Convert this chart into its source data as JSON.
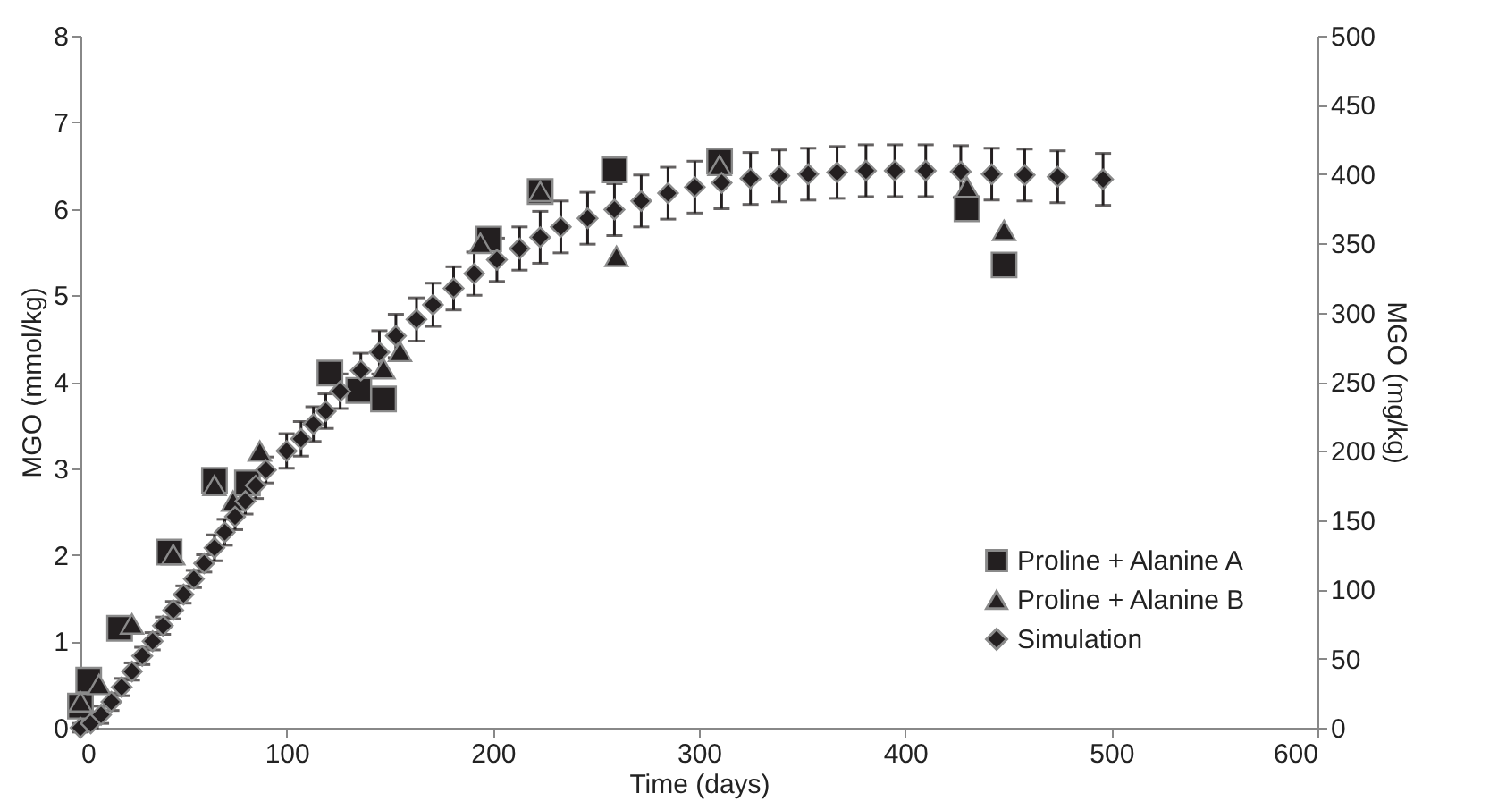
{
  "chart_data": {
    "type": "scatter",
    "xlabel": "Time (days)",
    "ylabel": "MGO (mmol/kg)",
    "y2label": "MGO (mg/kg)",
    "xlim": [
      0,
      600
    ],
    "xticks": [
      0,
      100,
      200,
      300,
      400,
      500,
      600
    ],
    "ylim": [
      0,
      8
    ],
    "yticks": [
      0,
      1,
      2,
      3,
      4,
      5,
      6,
      7,
      8
    ],
    "y2lim": [
      0,
      500
    ],
    "y2ticks": [
      0,
      50,
      100,
      150,
      200,
      250,
      300,
      350,
      400,
      450,
      500
    ],
    "grid": false,
    "legend": "bottom right",
    "series": [
      {
        "name": "Proline + Alanine A",
        "color": "#231f20",
        "marker": "square",
        "x": [
          0,
          4,
          19,
          43,
          65,
          81,
          121,
          135,
          147,
          198,
          223,
          259,
          310,
          430,
          448
        ],
        "values": [
          0.25,
          0.55,
          1.15,
          2.03,
          2.86,
          2.83,
          4.1,
          3.9,
          3.8,
          5.65,
          6.2,
          6.45,
          6.55,
          6.0,
          5.35
        ]
      },
      {
        "name": "Proline + Alanine B",
        "color": "#231f20",
        "marker": "triangle",
        "x": [
          0,
          9,
          25,
          45,
          65,
          74,
          87,
          147,
          155,
          194,
          223,
          260,
          310,
          430,
          448
        ],
        "values": [
          0.3,
          0.5,
          1.2,
          2.0,
          2.8,
          2.62,
          3.2,
          4.15,
          4.35,
          5.6,
          6.2,
          5.45,
          6.5,
          6.25,
          5.75
        ]
      },
      {
        "name": "Simulation",
        "color": "#231f20",
        "marker": "diamond",
        "x": [
          0,
          5,
          10,
          15,
          20,
          25,
          30,
          35,
          40,
          45,
          50,
          55,
          60,
          65,
          70,
          75,
          80,
          85,
          90,
          100,
          107,
          113,
          119,
          126,
          136,
          145,
          153,
          163,
          171,
          181,
          191,
          202,
          213,
          223,
          233,
          246,
          259,
          272,
          285,
          298,
          311,
          325,
          339,
          353,
          367,
          381,
          395,
          410,
          427,
          442,
          458,
          474,
          496
        ],
        "values": [
          0,
          0.05,
          0.15,
          0.3,
          0.47,
          0.65,
          0.83,
          1.0,
          1.18,
          1.36,
          1.54,
          1.72,
          1.9,
          2.08,
          2.26,
          2.44,
          2.62,
          2.8,
          2.98,
          3.2,
          3.34,
          3.51,
          3.66,
          3.89,
          4.13,
          4.34,
          4.53,
          4.72,
          4.89,
          5.08,
          5.25,
          5.41,
          5.54,
          5.67,
          5.79,
          5.89,
          5.99,
          6.09,
          6.18,
          6.25,
          6.3,
          6.35,
          6.38,
          6.4,
          6.42,
          6.44,
          6.44,
          6.44,
          6.43,
          6.4,
          6.39,
          6.37,
          6.34
        ],
        "errors": [
          0.05,
          0.05,
          0.1,
          0.1,
          0.1,
          0.1,
          0.1,
          0.1,
          0.1,
          0.1,
          0.1,
          0.1,
          0.1,
          0.15,
          0.15,
          0.15,
          0.15,
          0.15,
          0.15,
          0.2,
          0.2,
          0.2,
          0.2,
          0.2,
          0.2,
          0.25,
          0.25,
          0.25,
          0.25,
          0.25,
          0.25,
          0.25,
          0.25,
          0.3,
          0.3,
          0.3,
          0.3,
          0.3,
          0.3,
          0.3,
          0.3,
          0.3,
          0.3,
          0.3,
          0.3,
          0.3,
          0.3,
          0.3,
          0.3,
          0.3,
          0.3,
          0.3,
          0.3
        ]
      }
    ]
  }
}
